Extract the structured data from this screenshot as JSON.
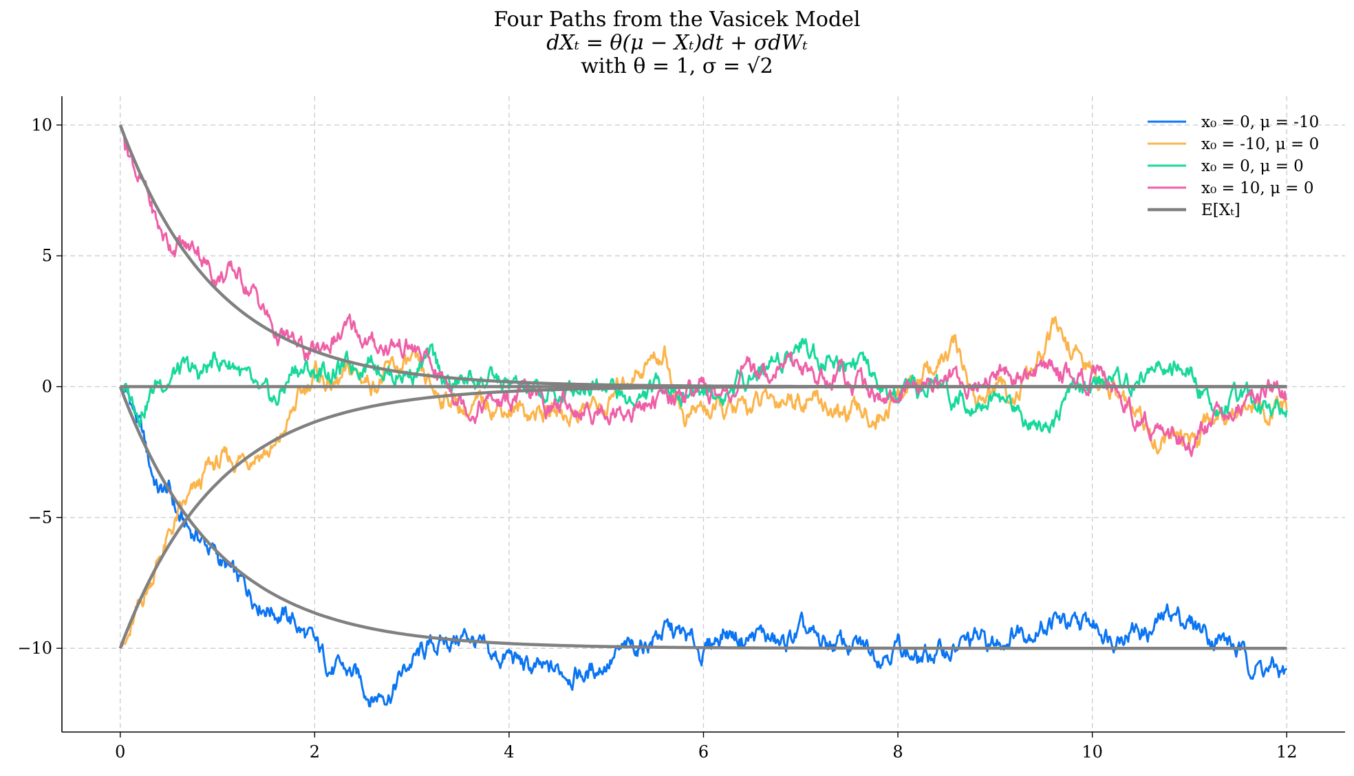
{
  "title": {
    "line1": "Four Paths from the Vasicek Model",
    "line2": "dXₜ = θ(μ − Xₜ)dt + σdWₜ",
    "line3": "with θ = 1, σ = √2"
  },
  "chart_data": {
    "type": "line",
    "title": "Four Paths from the Vasicek Model",
    "xlabel": "",
    "ylabel": "",
    "xlim": [
      -0.6,
      12.6
    ],
    "ylim": [
      -13.2,
      11.1
    ],
    "xticks": [
      0,
      2,
      4,
      6,
      8,
      10,
      12
    ],
    "yticks": [
      10,
      5,
      0,
      -5,
      -10
    ],
    "ytick_labels": [
      "10",
      "5",
      "0",
      "−5",
      "−10"
    ],
    "grid": true,
    "legend_position": "top-right",
    "colors": {
      "blue": "#0a74f2",
      "orange": "#fbb44a",
      "green": "#17d89a",
      "pink": "#ee5fa7",
      "gray": "#808080"
    },
    "series": [
      {
        "name": "x₀ = 0, μ = -10",
        "color": "#0a74f2",
        "x": [
          0,
          0.1,
          0.2,
          0.3,
          0.4,
          0.5,
          0.6,
          0.7,
          0.8,
          1.0,
          1.2,
          1.4,
          1.6,
          1.8,
          2.0,
          2.2,
          2.4,
          2.6,
          2.8,
          3.0,
          3.2,
          3.4,
          3.6,
          3.8,
          4.0,
          4.2,
          4.4,
          4.6,
          4.8,
          5.0,
          5.2,
          5.4,
          5.6,
          5.8,
          6.0,
          6.2,
          6.4,
          6.6,
          6.8,
          7.0,
          7.2,
          7.4,
          7.6,
          7.8,
          8.0,
          8.2,
          8.4,
          8.6,
          8.8,
          9.0,
          9.2,
          9.4,
          9.6,
          9.8,
          10.0,
          10.2,
          10.4,
          10.6,
          10.8,
          11.0,
          11.2,
          11.4,
          11.6,
          11.8,
          12.0
        ],
        "y": [
          0,
          -0.5,
          -1.5,
          -3.0,
          -4.0,
          -4.0,
          -5.0,
          -5.5,
          -5.7,
          -6.5,
          -7.5,
          -8.0,
          -8.5,
          -9.0,
          -10.0,
          -10.8,
          -11.0,
          -11.8,
          -11.5,
          -10.5,
          -10.0,
          -9.7,
          -9.5,
          -10.5,
          -10.3,
          -10.8,
          -11.0,
          -10.8,
          -11.0,
          -10.5,
          -10.2,
          -9.8,
          -9.3,
          -9.6,
          -10.2,
          -9.3,
          -9.6,
          -9.5,
          -10.0,
          -9.4,
          -9.9,
          -9.8,
          -10.0,
          -10.1,
          -9.8,
          -10.5,
          -10.2,
          -10.0,
          -9.7,
          -9.9,
          -9.3,
          -9.2,
          -8.9,
          -9.3,
          -9.1,
          -9.4,
          -9.2,
          -9.4,
          -8.6,
          -9.0,
          -9.4,
          -9.8,
          -10.5,
          -10.8,
          -11.0
        ]
      },
      {
        "name": "x₀ = -10, μ = 0",
        "color": "#fbb44a",
        "x": [
          0,
          0.1,
          0.2,
          0.3,
          0.4,
          0.5,
          0.6,
          0.8,
          0.9,
          1.0,
          1.2,
          1.4,
          1.6,
          1.8,
          2.0,
          2.2,
          2.4,
          2.6,
          2.8,
          3.0,
          3.2,
          3.4,
          3.6,
          3.8,
          4.0,
          4.2,
          4.4,
          4.6,
          4.8,
          5.0,
          5.2,
          5.4,
          5.6,
          5.8,
          6.0,
          6.2,
          6.4,
          6.6,
          6.8,
          7.0,
          7.2,
          7.4,
          7.6,
          7.8,
          8.0,
          8.2,
          8.4,
          8.6,
          8.8,
          9.0,
          9.2,
          9.4,
          9.6,
          9.8,
          10.0,
          10.2,
          10.4,
          10.6,
          10.8,
          11.0,
          11.2,
          11.4,
          11.6,
          11.8,
          12.0
        ],
        "y": [
          -10.0,
          -9.5,
          -8.5,
          -7.5,
          -6.5,
          -5.8,
          -5.0,
          -4.0,
          -3.2,
          -3.0,
          -2.8,
          -2.4,
          -2.5,
          -0.8,
          0.5,
          0.0,
          0.5,
          0.2,
          0.6,
          0.8,
          -0.2,
          -0.4,
          -1.0,
          -0.6,
          -0.8,
          -1.0,
          -0.9,
          -1.1,
          -0.7,
          -0.9,
          0.3,
          0.9,
          1.3,
          -1.2,
          -0.8,
          -1.0,
          -0.9,
          -0.6,
          -0.4,
          -0.3,
          -0.5,
          -1.2,
          -1.0,
          -1.2,
          -0.3,
          0.3,
          0.8,
          1.5,
          -0.5,
          -0.2,
          -0.3,
          0.5,
          2.1,
          1.5,
          0.5,
          -0.2,
          -1.0,
          -1.8,
          -2.0,
          -2.2,
          -1.2,
          -0.8,
          -0.6,
          -0.9,
          -1.0
        ]
      },
      {
        "name": "x₀ = 0, μ = 0",
        "color": "#17d89a",
        "x": [
          0,
          0.2,
          0.4,
          0.6,
          0.8,
          1.0,
          1.2,
          1.4,
          1.6,
          1.8,
          2.0,
          2.2,
          2.4,
          2.6,
          2.8,
          3.0,
          3.2,
          3.4,
          3.6,
          3.8,
          4.0,
          4.2,
          4.4,
          4.6,
          4.8,
          5.0,
          5.2,
          5.4,
          5.6,
          5.8,
          6.0,
          6.2,
          6.4,
          6.6,
          6.8,
          7.0,
          7.2,
          7.4,
          7.6,
          7.8,
          8.0,
          8.2,
          8.4,
          8.6,
          8.8,
          9.0,
          9.2,
          9.4,
          9.6,
          9.8,
          10.0,
          10.2,
          10.4,
          10.6,
          10.8,
          11.0,
          11.2,
          11.4,
          11.6,
          11.8,
          12.0
        ],
        "y": [
          0,
          -0.8,
          0.2,
          0.6,
          0.4,
          1.0,
          0.9,
          -0.5,
          -0.7,
          0.8,
          0.5,
          0.6,
          0.8,
          1.2,
          0.5,
          0.6,
          1.0,
          0.0,
          0.3,
          0.2,
          0.0,
          -0.2,
          -0.4,
          -0.3,
          0.2,
          0.4,
          -0.6,
          -0.4,
          0.2,
          -0.3,
          -0.1,
          -0.4,
          0.4,
          0.6,
          1.2,
          1.8,
          1.2,
          1.0,
          1.2,
          -0.2,
          -0.5,
          -0.4,
          0.2,
          -0.5,
          -0.3,
          -0.4,
          -0.8,
          -1.3,
          -1.2,
          -0.2,
          0.0,
          0.3,
          0.0,
          0.8,
          0.6,
          0.5,
          -0.5,
          -0.8,
          -0.6,
          -0.5,
          -0.8
        ]
      },
      {
        "name": "x₀ = 10, μ = 0",
        "color": "#ee5fa7",
        "x": [
          0,
          0.1,
          0.2,
          0.3,
          0.4,
          0.5,
          0.6,
          0.7,
          0.8,
          0.9,
          1.0,
          1.2,
          1.4,
          1.6,
          1.8,
          2.0,
          2.2,
          2.4,
          2.6,
          2.8,
          3.0,
          3.2,
          3.4,
          3.6,
          3.8,
          4.0,
          4.2,
          4.4,
          4.6,
          4.8,
          5.0,
          5.2,
          5.4,
          5.6,
          5.8,
          6.0,
          6.2,
          6.4,
          6.6,
          6.8,
          7.0,
          7.2,
          7.4,
          7.6,
          7.8,
          8.0,
          8.2,
          8.4,
          8.6,
          8.8,
          9.0,
          9.2,
          9.4,
          9.6,
          9.8,
          10.0,
          10.2,
          10.4,
          10.6,
          10.8,
          11.0,
          11.2,
          11.4,
          11.6,
          11.8,
          12.0
        ],
        "y": [
          10.0,
          9.0,
          8.0,
          7.0,
          6.0,
          5.5,
          5.5,
          5.2,
          5.4,
          4.6,
          4.2,
          4.3,
          3.5,
          2.0,
          1.5,
          1.2,
          1.8,
          2.2,
          1.5,
          1.6,
          1.5,
          0.7,
          0.1,
          -0.8,
          -0.5,
          -0.7,
          -0.3,
          -0.8,
          -0.6,
          -1.0,
          -0.8,
          -0.9,
          -0.7,
          -0.5,
          -0.1,
          -0.2,
          -0.4,
          0.3,
          0.6,
          0.9,
          0.9,
          0.3,
          0.5,
          0.3,
          -0.3,
          -0.5,
          -0.2,
          0.4,
          0.3,
          0.0,
          0.6,
          0.5,
          0.4,
          0.9,
          0.4,
          0.3,
          -0.3,
          -0.8,
          -1.5,
          -2.0,
          -2.2,
          -1.5,
          -0.6,
          -0.3,
          0.2,
          -0.3
        ]
      },
      {
        "name": "E[Xₜ]",
        "color": "#808080",
        "x": [
          0,
          0.25,
          0.5,
          0.75,
          1.0,
          1.25,
          1.5,
          1.75,
          2.0,
          2.5,
          3.0,
          3.5,
          4.0,
          4.5,
          5.0,
          6.0,
          7.0,
          8.0,
          9.0,
          10.0,
          11.0,
          12.0
        ],
        "y": [
          10.0,
          7.79,
          6.07,
          4.72,
          3.68,
          2.87,
          2.23,
          1.74,
          1.35,
          0.82,
          0.5,
          0.3,
          0.18,
          0.11,
          0.07,
          0.02,
          0.01,
          0.0,
          0.0,
          0.0,
          0.0,
          0.0
        ]
      }
    ],
    "expectation_curves": [
      {
        "x0": 10,
        "mu": 0
      },
      {
        "x0": -10,
        "mu": 0
      },
      {
        "x0": 0,
        "mu": -10
      },
      {
        "x0": 0,
        "mu": 0
      }
    ]
  }
}
